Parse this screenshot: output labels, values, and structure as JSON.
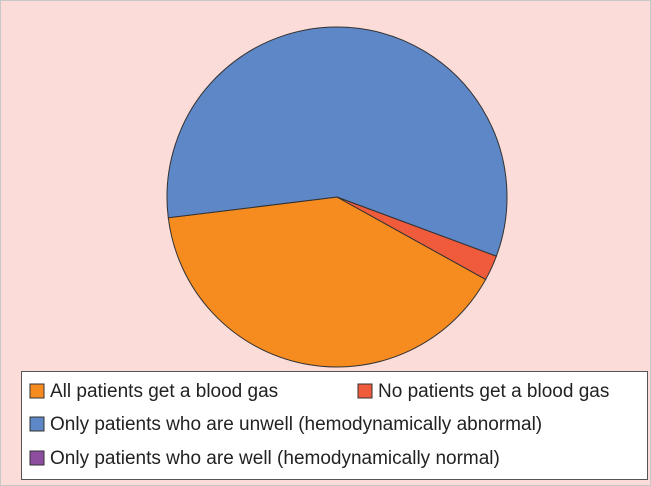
{
  "chart_data": {
    "type": "pie",
    "categories": [
      "All patients get a blood gas",
      "No patients get a blood gas",
      "Only patients who are unwell (hemodynamically abnormal)",
      "Only patients who are well (hemodynamically normal)"
    ],
    "values": [
      40,
      2.4,
      57.6,
      0
    ],
    "colors": [
      "#f68b1f",
      "#ef5b3b",
      "#5d87c6",
      "#8e4ea0"
    ]
  }
}
